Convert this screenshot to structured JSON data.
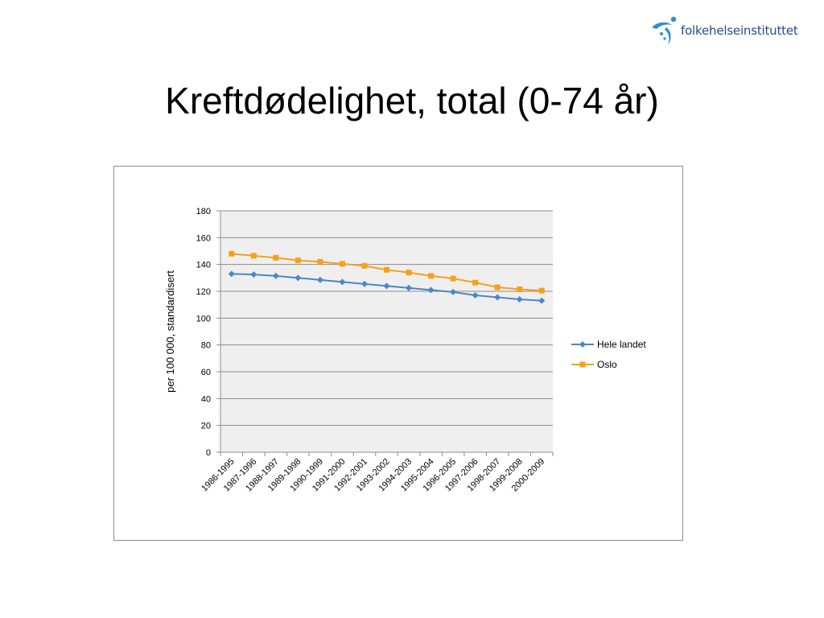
{
  "logo": {
    "text": "folkehelseinstituttet"
  },
  "slide": {
    "title": "Kreftdødelighet, total (0-74 år)"
  },
  "chart_data": {
    "type": "line",
    "title": "",
    "xlabel": "",
    "ylabel": "per 100 000, standardisert",
    "ylim": [
      0,
      180
    ],
    "yticks": [
      0,
      20,
      40,
      60,
      80,
      100,
      120,
      140,
      160,
      180
    ],
    "grid": true,
    "legend_position": "right",
    "categories": [
      "1986-1995",
      "1987-1996",
      "1988-1997",
      "1989-1998",
      "1990-1999",
      "1991-2000",
      "1992-2001",
      "1993-2002",
      "1994-2003",
      "1995-2004",
      "1996-2005",
      "1997-2006",
      "1998-2007",
      "1999-2008",
      "2000-2009"
    ],
    "series": [
      {
        "name": "Hele landet",
        "color": "#4a86c8",
        "marker": "diamond",
        "values": [
          133,
          132.5,
          131.5,
          130,
          128.5,
          127,
          125.5,
          124,
          122.5,
          121,
          119.5,
          117,
          115.5,
          114,
          113
        ]
      },
      {
        "name": "Oslo",
        "color": "#f5a11c",
        "marker": "square",
        "values": [
          148,
          146.5,
          145,
          143,
          142,
          140.5,
          139,
          136,
          134,
          131.5,
          129.5,
          126.5,
          123,
          121.5,
          120.5
        ]
      }
    ],
    "colors": {
      "plot_background": "#efefef",
      "gridline": "#8c8c8c"
    }
  }
}
